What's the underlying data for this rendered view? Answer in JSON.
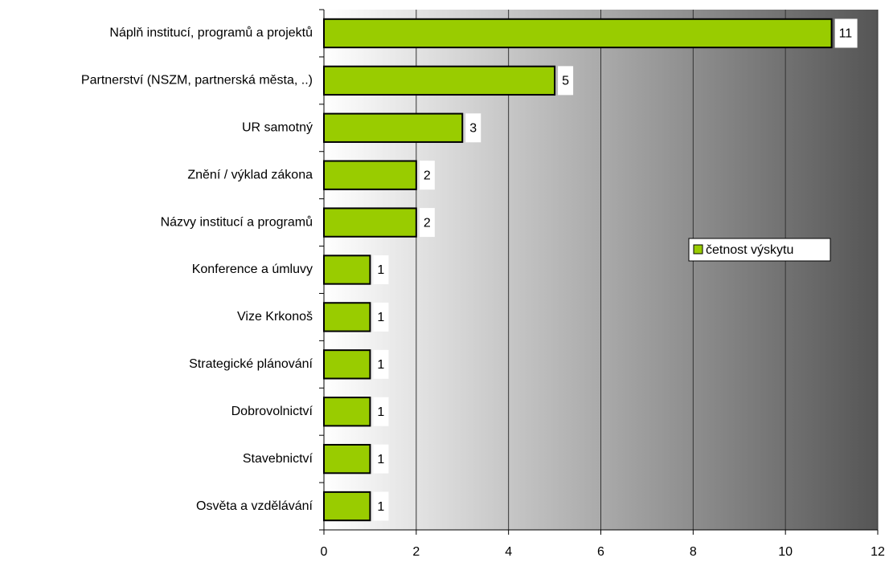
{
  "chart_data": {
    "type": "hbar",
    "categories": [
      "Náplň institucí, programů a projektů",
      "Partnerství (NSZM, partnerská města, ..)",
      "UR samotný",
      "Znění / výklad zákona",
      "Názvy institucí a programů",
      "Konference a úmluvy",
      "Vize Krkonoš",
      "Strategické plánování",
      "Dobrovolnictví",
      "Stavebnictví",
      "Osvěta a vzdělávání"
    ],
    "series": [
      {
        "name": "četnost výskytu",
        "color": "#99cc00",
        "values": [
          11,
          5,
          3,
          2,
          2,
          1,
          1,
          1,
          1,
          1,
          1
        ]
      }
    ],
    "xlim": [
      0,
      12
    ],
    "xticks": [
      0,
      2,
      4,
      6,
      8,
      10,
      12
    ],
    "grid": true,
    "legend": "right"
  }
}
